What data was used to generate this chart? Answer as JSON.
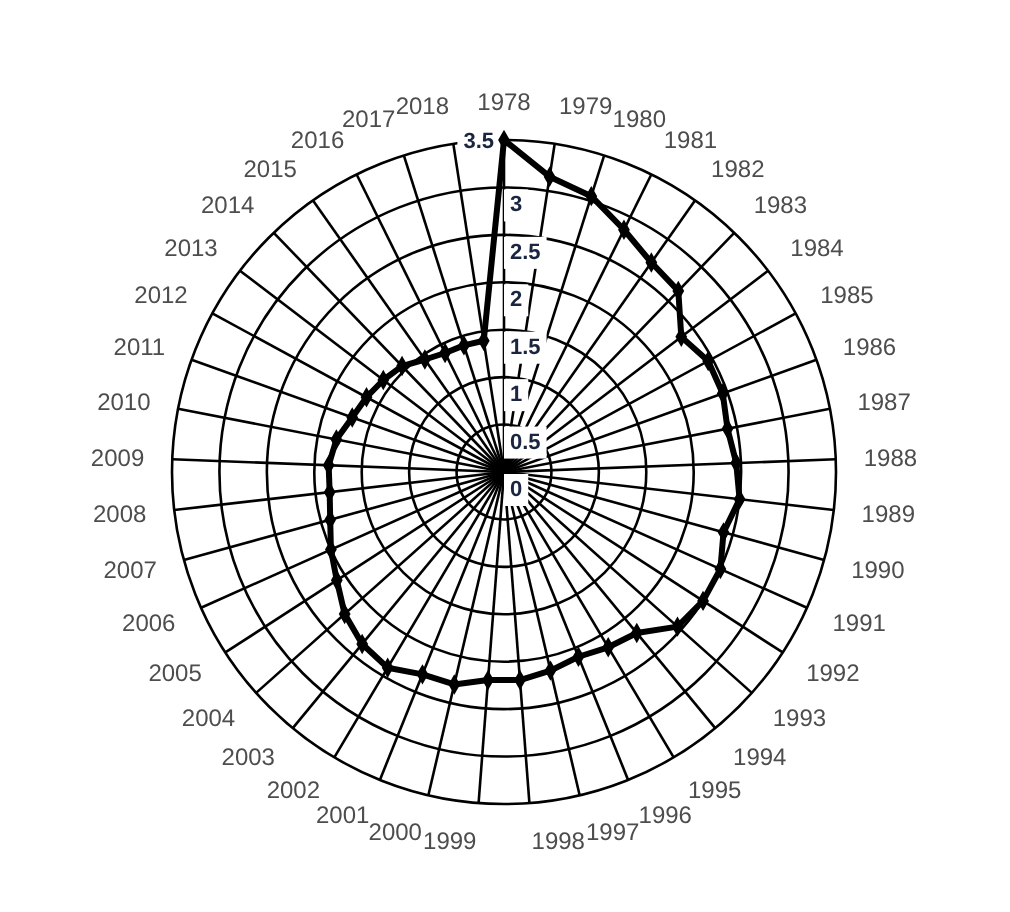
{
  "chart_data": {
    "type": "radar",
    "categories": [
      "1978",
      "1979",
      "1980",
      "1981",
      "1982",
      "1983",
      "1984",
      "1985",
      "1986",
      "1987",
      "1988",
      "1989",
      "1990",
      "1991",
      "1992",
      "1993",
      "1994",
      "1995",
      "1996",
      "1997",
      "1998",
      "1999",
      "2000",
      "2001",
      "2002",
      "2003",
      "2004",
      "2005",
      "2006",
      "2007",
      "2008",
      "2009",
      "2010",
      "2011",
      "2012",
      "2013",
      "2014",
      "2015",
      "2016",
      "2017",
      "2018"
    ],
    "series": [
      {
        "color": "#000000",
        "values": [
          3.5,
          3.15,
          3.05,
          2.85,
          2.7,
          2.65,
          2.35,
          2.45,
          2.45,
          2.4,
          2.45,
          2.5,
          2.4,
          2.5,
          2.5,
          2.45,
          2.2,
          2.15,
          2.1,
          2.15,
          2.2,
          2.2,
          2.3,
          2.3,
          2.4,
          2.35,
          2.25,
          2.1,
          2,
          1.9,
          1.85,
          1.85,
          1.8,
          1.7,
          1.65,
          1.6,
          1.55,
          1.45,
          1.4,
          1.4,
          1.4
        ]
      }
    ],
    "ylim": [
      0,
      3.5
    ],
    "yticks": [
      0,
      0.5,
      1,
      1.5,
      2,
      2.5,
      3,
      3.5
    ],
    "grid": true,
    "marker": "diamond",
    "line_style": "solid"
  }
}
